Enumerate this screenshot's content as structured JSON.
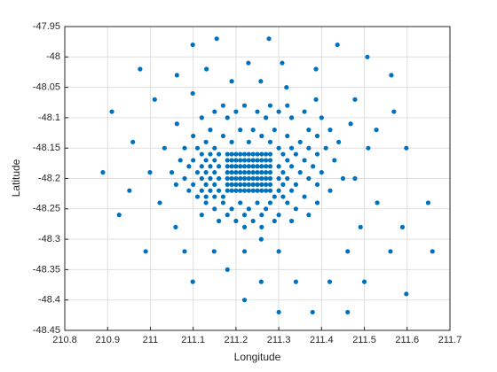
{
  "chart_data": {
    "type": "scatter",
    "xlabel": "Longitude",
    "ylabel": "Latitude",
    "color": "#0072bd",
    "grid": true,
    "xlim": [
      210.8,
      211.7
    ],
    "ylim": [
      -48.45,
      -47.95
    ],
    "xticks": [
      210.8,
      210.9,
      211,
      211.1,
      211.2,
      211.3,
      211.4,
      211.5,
      211.6,
      211.7
    ],
    "yticks": [
      -48.45,
      -48.4,
      -48.35,
      -48.3,
      -48.25,
      -48.2,
      -48.15,
      -48.1,
      -48.05,
      -48,
      -47.95
    ],
    "x": [
      211.155,
      211.277,
      211.099,
      211.437,
      211.507,
      211.229,
      211.308,
      210.976,
      211.131,
      211.387,
      211.062,
      211.563,
      211.19,
      211.258,
      211.318,
      211.099,
      211.01,
      211.387,
      211.478,
      210.91,
      211.569,
      211.062,
      211.468,
      211.528,
      210.959,
      211.033,
      211.509,
      211.598,
      210.889,
      210.999,
      211.478,
      210.951,
      211.022,
      211.53,
      211.649,
      210.927,
      211.059,
      211.491,
      211.589,
      211.259,
      210.989,
      211.08,
      211.149,
      211.22,
      211.3,
      211.461,
      211.561,
      211.659,
      211.18,
      211.099,
      211.259,
      211.34,
      211.419,
      211.5,
      211.598,
      211.22,
      211.3,
      211.379,
      211.461,
      211.17,
      211.22,
      211.28,
      211.32,
      211.15,
      211.2,
      211.25,
      211.3,
      211.36,
      211.12,
      211.18,
      211.27,
      211.33,
      211.4,
      211.14,
      211.21,
      211.24,
      211.29,
      211.37,
      211.42,
      211.1,
      211.17,
      211.26,
      211.32,
      211.39,
      211.13,
      211.19,
      211.23,
      211.28,
      211.35,
      211.44,
      211.08,
      211.11,
      211.15,
      211.3,
      211.33,
      211.37,
      211.41,
      211.12,
      211.14,
      211.16,
      211.31,
      211.34,
      211.39,
      211.07,
      211.1,
      211.13,
      211.15,
      211.32,
      211.36,
      211.43,
      211.09,
      211.12,
      211.14,
      211.16,
      211.3,
      211.33,
      211.38,
      211.05,
      211.11,
      211.13,
      211.15,
      211.31,
      211.35,
      211.4,
      211.08,
      211.12,
      211.14,
      211.16,
      211.3,
      211.32,
      211.37,
      211.45,
      211.06,
      211.1,
      211.13,
      211.15,
      211.31,
      211.34,
      211.39,
      211.09,
      211.12,
      211.14,
      211.16,
      211.3,
      211.33,
      211.42,
      211.11,
      211.13,
      211.15,
      211.17,
      211.29,
      211.31,
      211.36,
      211.13,
      211.17,
      211.21,
      211.25,
      211.28,
      211.32,
      211.39,
      211.15,
      211.19,
      211.23,
      211.27,
      211.34,
      211.12,
      211.18,
      211.22,
      211.26,
      211.3,
      211.37,
      211.16,
      211.2,
      211.24,
      211.29,
      211.33,
      211.22,
      211.26,
      211.18,
      211.19,
      211.2,
      211.21,
      211.22,
      211.23,
      211.24,
      211.25,
      211.26,
      211.27,
      211.28,
      211.18,
      211.19,
      211.2,
      211.21,
      211.22,
      211.23,
      211.24,
      211.25,
      211.26,
      211.27,
      211.28,
      211.18,
      211.19,
      211.2,
      211.21,
      211.22,
      211.23,
      211.24,
      211.25,
      211.26,
      211.27,
      211.28,
      211.18,
      211.19,
      211.2,
      211.21,
      211.22,
      211.23,
      211.24,
      211.25,
      211.26,
      211.27,
      211.28,
      211.18,
      211.19,
      211.2,
      211.21,
      211.22,
      211.23,
      211.24,
      211.25,
      211.26,
      211.27,
      211.28,
      211.18,
      211.19,
      211.2,
      211.21,
      211.22,
      211.23,
      211.24,
      211.25,
      211.26,
      211.27,
      211.28,
      211.18,
      211.19,
      211.2,
      211.21,
      211.22,
      211.23,
      211.24,
      211.25,
      211.26,
      211.27,
      211.28
    ],
    "values": [
      -47.97,
      -47.97,
      -47.98,
      -47.98,
      -48,
      -48.01,
      -48.01,
      -48.02,
      -48.02,
      -48.02,
      -48.03,
      -48.03,
      -48.04,
      -48.04,
      -48.05,
      -48.06,
      -48.07,
      -48.07,
      -48.07,
      -48.09,
      -48.09,
      -48.11,
      -48.11,
      -48.12,
      -48.14,
      -48.15,
      -48.15,
      -48.15,
      -48.19,
      -48.19,
      -48.2,
      -48.22,
      -48.24,
      -48.24,
      -48.24,
      -48.26,
      -48.28,
      -48.28,
      -48.28,
      -48.3,
      -48.32,
      -48.32,
      -48.32,
      -48.32,
      -48.32,
      -48.32,
      -48.32,
      -48.32,
      -48.35,
      -48.37,
      -48.37,
      -48.37,
      -48.37,
      -48.37,
      -48.39,
      -48.4,
      -48.42,
      -48.42,
      -48.42,
      -48.08,
      -48.08,
      -48.08,
      -48.08,
      -48.09,
      -48.09,
      -48.09,
      -48.09,
      -48.09,
      -48.1,
      -48.1,
      -48.1,
      -48.1,
      -48.1,
      -48.12,
      -48.12,
      -48.12,
      -48.12,
      -48.12,
      -48.12,
      -48.13,
      -48.13,
      -48.13,
      -48.13,
      -48.13,
      -48.14,
      -48.14,
      -48.14,
      -48.14,
      -48.14,
      -48.14,
      -48.15,
      -48.15,
      -48.15,
      -48.15,
      -48.15,
      -48.15,
      -48.15,
      -48.16,
      -48.16,
      -48.16,
      -48.16,
      -48.16,
      -48.16,
      -48.17,
      -48.17,
      -48.17,
      -48.17,
      -48.17,
      -48.17,
      -48.17,
      -48.18,
      -48.18,
      -48.18,
      -48.18,
      -48.18,
      -48.18,
      -48.18,
      -48.19,
      -48.19,
      -48.19,
      -48.19,
      -48.19,
      -48.19,
      -48.19,
      -48.2,
      -48.2,
      -48.2,
      -48.2,
      -48.2,
      -48.2,
      -48.2,
      -48.2,
      -48.21,
      -48.21,
      -48.21,
      -48.21,
      -48.21,
      -48.21,
      -48.21,
      -48.22,
      -48.22,
      -48.22,
      -48.22,
      -48.22,
      -48.22,
      -48.22,
      -48.23,
      -48.23,
      -48.23,
      -48.23,
      -48.23,
      -48.23,
      -48.23,
      -48.24,
      -48.24,
      -48.24,
      -48.24,
      -48.24,
      -48.24,
      -48.24,
      -48.25,
      -48.25,
      -48.25,
      -48.25,
      -48.25,
      -48.26,
      -48.26,
      -48.26,
      -48.26,
      -48.26,
      -48.26,
      -48.27,
      -48.27,
      -48.27,
      -48.27,
      -48.27,
      -48.28,
      -48.28,
      -48.16,
      -48.16,
      -48.16,
      -48.16,
      -48.16,
      -48.16,
      -48.16,
      -48.16,
      -48.16,
      -48.16,
      -48.16,
      -48.17,
      -48.17,
      -48.17,
      -48.17,
      -48.17,
      -48.17,
      -48.17,
      -48.17,
      -48.17,
      -48.17,
      -48.17,
      -48.18,
      -48.18,
      -48.18,
      -48.18,
      -48.18,
      -48.18,
      -48.18,
      -48.18,
      -48.18,
      -48.18,
      -48.18,
      -48.19,
      -48.19,
      -48.19,
      -48.19,
      -48.19,
      -48.19,
      -48.19,
      -48.19,
      -48.19,
      -48.19,
      -48.19,
      -48.2,
      -48.2,
      -48.2,
      -48.2,
      -48.2,
      -48.2,
      -48.2,
      -48.2,
      -48.2,
      -48.2,
      -48.2,
      -48.21,
      -48.21,
      -48.21,
      -48.21,
      -48.21,
      -48.21,
      -48.21,
      -48.21,
      -48.21,
      -48.21,
      -48.21,
      -48.22,
      -48.22,
      -48.22,
      -48.22,
      -48.22,
      -48.22,
      -48.22,
      -48.22,
      -48.22,
      -48.22,
      -48.22
    ]
  }
}
